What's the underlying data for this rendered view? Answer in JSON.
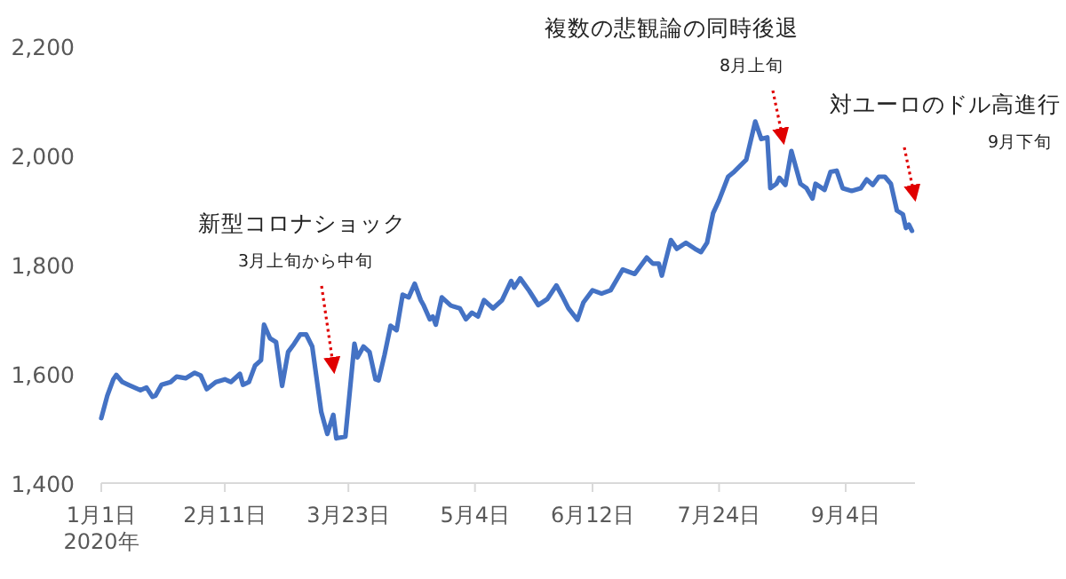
{
  "chart_data": {
    "type": "line",
    "grid": false,
    "marker": "none",
    "line_style": "solid",
    "xlim": [
      "2020-01-01",
      "2020-09-27"
    ],
    "xticks": [
      {
        "value": "2020-01-01",
        "label": "1月1日\n2020年"
      },
      {
        "value": "2020-02-11",
        "label": "2月11日"
      },
      {
        "value": "2020-03-23",
        "label": "3月23日"
      },
      {
        "value": "2020-05-04",
        "label": "5月4日"
      },
      {
        "value": "2020-06-12",
        "label": "6月12日"
      },
      {
        "value": "2020-07-24",
        "label": "7月24日"
      },
      {
        "value": "2020-09-04",
        "label": "9月4日"
      }
    ],
    "ylim": [
      1400,
      2200
    ],
    "yticks": [
      {
        "value": 1400,
        "label": "1,400"
      },
      {
        "value": 1600,
        "label": "1,600"
      },
      {
        "value": 1800,
        "label": "1,800"
      },
      {
        "value": 2000,
        "label": "2,000"
      },
      {
        "value": 2200,
        "label": "2,200"
      }
    ],
    "annotations": [
      "新型コロナショック",
      "3月上旬から中旬",
      "複数の悲観論の同時後退",
      "8月上旬",
      "対ユーロのドル高進行",
      "9月下旬"
    ],
    "series": [
      {
        "color": "#4472c4",
        "x": [
          "2020-01-01",
          "2020-01-03",
          "2020-01-05",
          "2020-01-06",
          "2020-01-08",
          "2020-01-10",
          "2020-01-12",
          "2020-01-14",
          "2020-01-16",
          "2020-01-18",
          "2020-01-19",
          "2020-01-21",
          "2020-01-24",
          "2020-01-26",
          "2020-01-29",
          "2020-02-01",
          "2020-02-03",
          "2020-02-05",
          "2020-02-08",
          "2020-02-11",
          "2020-02-13",
          "2020-02-16",
          "2020-02-17",
          "2020-02-19",
          "2020-02-21",
          "2020-02-23",
          "2020-02-24",
          "2020-02-26",
          "2020-02-28",
          "2020-03-01",
          "2020-03-03",
          "2020-03-05",
          "2020-03-07",
          "2020-03-09",
          "2020-03-11",
          "2020-03-14",
          "2020-03-16",
          "2020-03-18",
          "2020-03-19",
          "2020-03-22",
          "2020-03-25",
          "2020-03-26",
          "2020-03-28",
          "2020-03-30",
          "2020-04-01",
          "2020-04-02",
          "2020-04-04",
          "2020-04-06",
          "2020-04-08",
          "2020-04-10",
          "2020-04-12",
          "2020-04-14",
          "2020-04-16",
          "2020-04-17",
          "2020-04-19",
          "2020-04-20",
          "2020-04-21",
          "2020-04-23",
          "2020-04-26",
          "2020-04-29",
          "2020-05-01",
          "2020-05-03",
          "2020-05-05",
          "2020-05-07",
          "2020-05-10",
          "2020-05-13",
          "2020-05-16",
          "2020-05-17",
          "2020-05-19",
          "2020-05-22",
          "2020-05-25",
          "2020-05-28",
          "2020-05-31",
          "2020-06-02",
          "2020-06-04",
          "2020-06-07",
          "2020-06-09",
          "2020-06-12",
          "2020-06-15",
          "2020-06-18",
          "2020-06-22",
          "2020-06-26",
          "2020-06-30",
          "2020-07-02",
          "2020-07-04",
          "2020-07-05",
          "2020-07-08",
          "2020-07-10",
          "2020-07-13",
          "2020-07-16",
          "2020-07-18",
          "2020-07-20",
          "2020-07-22",
          "2020-07-24",
          "2020-07-27",
          "2020-07-29",
          "2020-07-31",
          "2020-08-02",
          "2020-08-05",
          "2020-08-07",
          "2020-08-09",
          "2020-08-10",
          "2020-08-12",
          "2020-08-13",
          "2020-08-15",
          "2020-08-17",
          "2020-08-20",
          "2020-08-22",
          "2020-08-24",
          "2020-08-25",
          "2020-08-28",
          "2020-08-30",
          "2020-09-01",
          "2020-09-03",
          "2020-09-06",
          "2020-09-09",
          "2020-09-11",
          "2020-09-13",
          "2020-09-15",
          "2020-09-17",
          "2020-09-19",
          "2020-09-21",
          "2020-09-23",
          "2020-09-24",
          "2020-09-25",
          "2020-09-26"
        ],
        "values": [
          1519,
          1560,
          1590,
          1598,
          1585,
          1580,
          1575,
          1570,
          1575,
          1558,
          1560,
          1580,
          1585,
          1595,
          1592,
          1602,
          1597,
          1572,
          1585,
          1590,
          1585,
          1600,
          1580,
          1585,
          1615,
          1625,
          1690,
          1665,
          1658,
          1578,
          1640,
          1655,
          1672,
          1672,
          1650,
          1530,
          1490,
          1525,
          1482,
          1485,
          1655,
          1630,
          1650,
          1640,
          1590,
          1588,
          1635,
          1688,
          1680,
          1745,
          1740,
          1765,
          1735,
          1725,
          1700,
          1705,
          1690,
          1740,
          1725,
          1720,
          1700,
          1712,
          1705,
          1735,
          1720,
          1735,
          1770,
          1758,
          1775,
          1752,
          1726,
          1737,
          1762,
          1742,
          1720,
          1699,
          1731,
          1753,
          1747,
          1753,
          1791,
          1783,
          1813,
          1802,
          1802,
          1780,
          1845,
          1829,
          1840,
          1829,
          1823,
          1840,
          1894,
          1918,
          1961,
          1970,
          1981,
          1992,
          2062,
          2030,
          2033,
          1940,
          1948,
          1959,
          1946,
          2008,
          1948,
          1940,
          1921,
          1948,
          1937,
          1970,
          1972,
          1940,
          1935,
          1940,
          1956,
          1946,
          1961,
          1961,
          1948,
          1899,
          1892,
          1867,
          1873,
          1862
        ]
      }
    ]
  }
}
